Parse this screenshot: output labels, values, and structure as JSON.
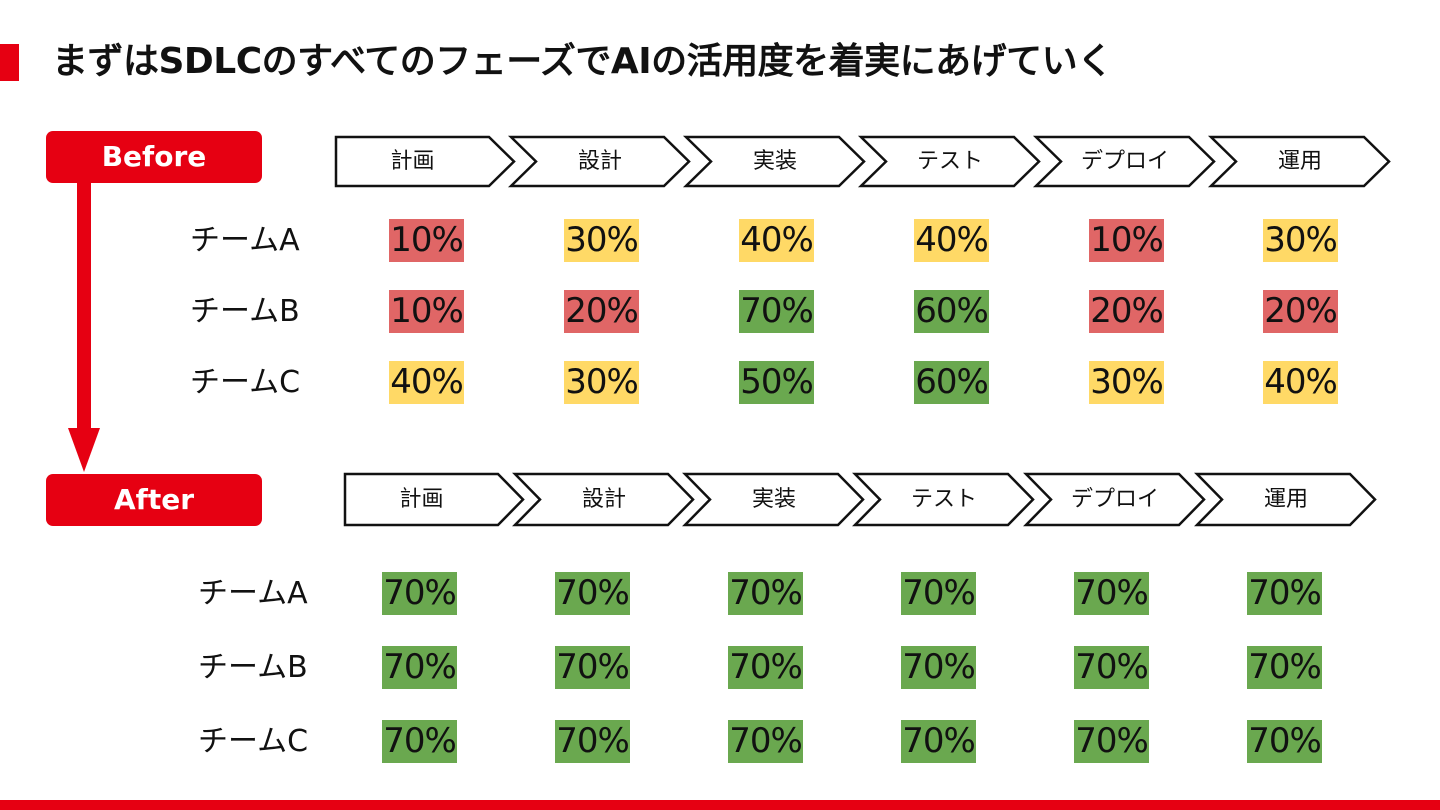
{
  "title": "まずはSDLCのすべてのフェーズでAIの活用度を着実にあげていく",
  "colors": {
    "accent": "#E60012",
    "red_cell": "#E06666",
    "yellow_cell": "#FFD966",
    "green_cell": "#6AA84F"
  },
  "icons": [
    "down-arrow-icon"
  ],
  "before": {
    "label": "Before",
    "phases": [
      "計画",
      "設計",
      "実装",
      "テスト",
      "デプロイ",
      "運用"
    ],
    "teams": [
      {
        "name": "チームA",
        "cells": [
          {
            "value": "10%",
            "level": "red"
          },
          {
            "value": "30%",
            "level": "yellow"
          },
          {
            "value": "40%",
            "level": "yellow"
          },
          {
            "value": "40%",
            "level": "yellow"
          },
          {
            "value": "10%",
            "level": "red"
          },
          {
            "value": "30%",
            "level": "yellow"
          }
        ]
      },
      {
        "name": "チームB",
        "cells": [
          {
            "value": "10%",
            "level": "red"
          },
          {
            "value": "20%",
            "level": "red"
          },
          {
            "value": "70%",
            "level": "green"
          },
          {
            "value": "60%",
            "level": "green"
          },
          {
            "value": "20%",
            "level": "red"
          },
          {
            "value": "20%",
            "level": "red"
          }
        ]
      },
      {
        "name": "チームC",
        "cells": [
          {
            "value": "40%",
            "level": "yellow"
          },
          {
            "value": "30%",
            "level": "yellow"
          },
          {
            "value": "50%",
            "level": "green"
          },
          {
            "value": "60%",
            "level": "green"
          },
          {
            "value": "30%",
            "level": "yellow"
          },
          {
            "value": "40%",
            "level": "yellow"
          }
        ]
      }
    ]
  },
  "after": {
    "label": "After",
    "phases": [
      "計画",
      "設計",
      "実装",
      "テスト",
      "デプロイ",
      "運用"
    ],
    "teams": [
      {
        "name": "チームA",
        "cells": [
          {
            "value": "70%",
            "level": "green"
          },
          {
            "value": "70%",
            "level": "green"
          },
          {
            "value": "70%",
            "level": "green"
          },
          {
            "value": "70%",
            "level": "green"
          },
          {
            "value": "70%",
            "level": "green"
          },
          {
            "value": "70%",
            "level": "green"
          }
        ]
      },
      {
        "name": "チームB",
        "cells": [
          {
            "value": "70%",
            "level": "green"
          },
          {
            "value": "70%",
            "level": "green"
          },
          {
            "value": "70%",
            "level": "green"
          },
          {
            "value": "70%",
            "level": "green"
          },
          {
            "value": "70%",
            "level": "green"
          },
          {
            "value": "70%",
            "level": "green"
          }
        ]
      },
      {
        "name": "チームC",
        "cells": [
          {
            "value": "70%",
            "level": "green"
          },
          {
            "value": "70%",
            "level": "green"
          },
          {
            "value": "70%",
            "level": "green"
          },
          {
            "value": "70%",
            "level": "green"
          },
          {
            "value": "70%",
            "level": "green"
          },
          {
            "value": "70%",
            "level": "green"
          }
        ]
      }
    ]
  }
}
